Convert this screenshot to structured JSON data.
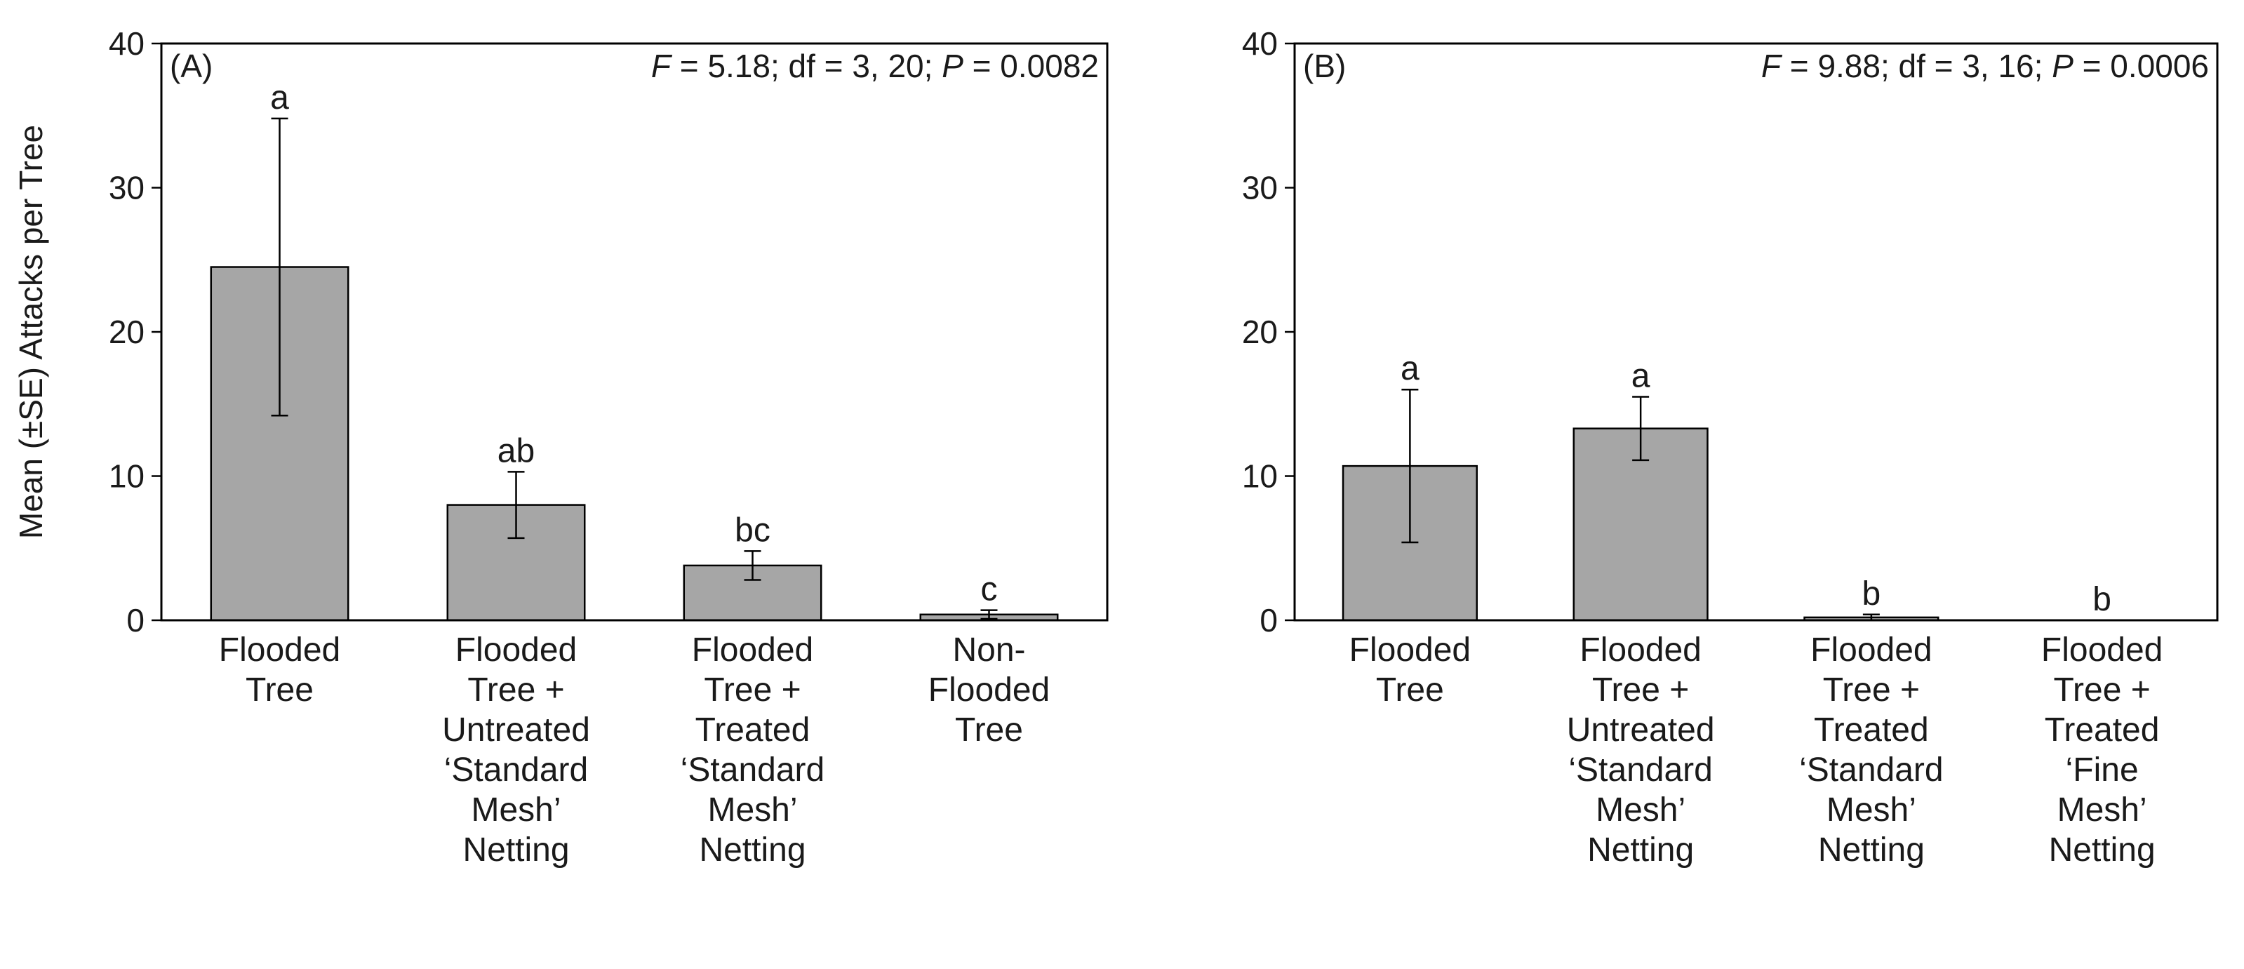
{
  "chart_data": [
    {
      "type": "bar",
      "panel_label": "(A)",
      "stats": {
        "f_label": "F",
        "f_text": " = 5.18; df = 3, 20; ",
        "p_label": "P",
        "p_text": " = 0.0082"
      },
      "ylabel": "Mean (±SE) Attacks per Tree",
      "ylim": [
        0,
        40
      ],
      "yticks": [
        0,
        10,
        20,
        30,
        40
      ],
      "categories": [
        [
          "Flooded",
          "Tree"
        ],
        [
          "Flooded",
          "Tree +",
          "Untreated",
          "‘Standard",
          "Mesh’",
          "Netting"
        ],
        [
          "Flooded",
          "Tree +",
          "Treated",
          "‘Standard",
          "Mesh’",
          "Netting"
        ],
        [
          "Non-",
          "Flooded",
          "Tree"
        ]
      ],
      "values": [
        24.5,
        8.0,
        3.8,
        0.4
      ],
      "errors": [
        10.3,
        2.3,
        1.0,
        0.3
      ],
      "letters": [
        "a",
        "ab",
        "bc",
        "c"
      ]
    },
    {
      "type": "bar",
      "panel_label": "(B)",
      "stats": {
        "f_label": "F",
        "f_text": " = 9.88; df = 3, 16; ",
        "p_label": "P",
        "p_text": " = 0.0006"
      },
      "ylabel": "",
      "ylim": [
        0,
        40
      ],
      "yticks": [
        0,
        10,
        20,
        30,
        40
      ],
      "categories": [
        [
          "Flooded",
          "Tree"
        ],
        [
          "Flooded",
          "Tree +",
          "Untreated",
          "‘Standard",
          "Mesh’",
          "Netting"
        ],
        [
          "Flooded",
          "Tree +",
          "Treated",
          "‘Standard",
          "Mesh’",
          "Netting"
        ],
        [
          "Flooded",
          "Tree +",
          "Treated",
          "‘Fine",
          "Mesh’",
          "Netting"
        ]
      ],
      "values": [
        10.7,
        13.3,
        0.2,
        0.0
      ],
      "errors": [
        5.3,
        2.2,
        0.2,
        0.0
      ],
      "letters": [
        "a",
        "a",
        "b",
        "b"
      ]
    }
  ],
  "colors": {
    "bar_fill": "#a6a6a6",
    "stroke": "#000000",
    "text": "#1a1a1a"
  }
}
